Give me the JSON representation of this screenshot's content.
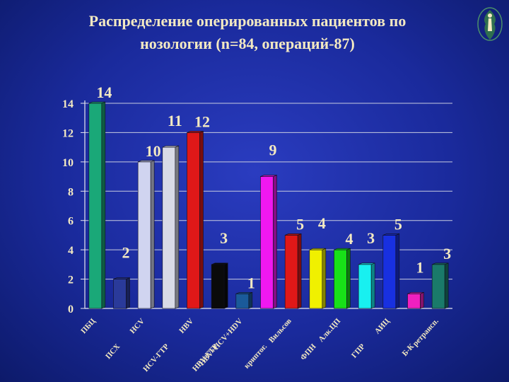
{
  "title_line1": "Распределение оперированных пациентов по",
  "title_line2": "нозологии (n=84, операций-87)",
  "chart_data": {
    "type": "bar",
    "categories": [
      "ПБЦ",
      "ПСХ",
      "HCV",
      "HCV-ГТР",
      "HBV",
      "HBV-ГТР",
      "HBV+HCV+HDV",
      "криптог.",
      "Вильсов",
      "ФПН",
      "Алк.ЦП",
      "ГПР",
      "АИЦ",
      "Б-К",
      "ретрансп."
    ],
    "values": [
      14,
      2,
      10,
      11,
      12,
      3,
      1,
      9,
      5,
      4,
      4,
      3,
      5,
      1,
      3
    ],
    "colors": [
      "#1aa878",
      "#2a3a9a",
      "#d0d4f0",
      "#d8dae6",
      "#e01818",
      "#0a0a0a",
      "#1a5a9a",
      "#f018f0",
      "#e01818",
      "#f0f000",
      "#18e018",
      "#18f0f0",
      "#1830e0",
      "#f020c0",
      "#1a7a6a"
    ],
    "ylim": [
      0,
      14
    ],
    "yticks": [
      0,
      2,
      4,
      6,
      8,
      10,
      12,
      14
    ],
    "grid": true
  }
}
